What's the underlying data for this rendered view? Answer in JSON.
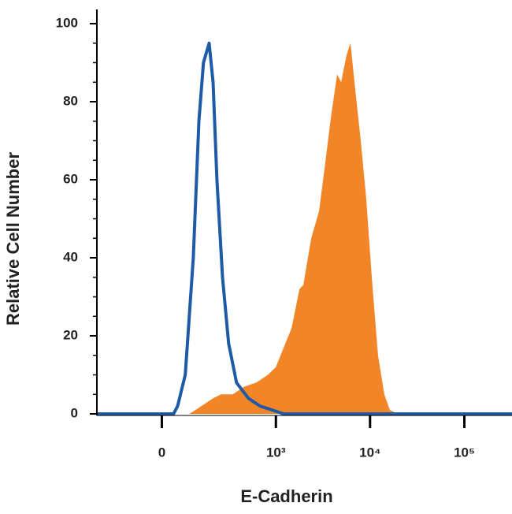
{
  "chart_data": {
    "type": "histogram-overlay",
    "xlabel": "E-Cadherin",
    "ylabel": "Relative Cell Number",
    "xscale": "biexponential",
    "xlim": [
      -290,
      320000
    ],
    "xticks": [
      0,
      {
        "value": 1000,
        "label": "10³"
      },
      {
        "value": 10000,
        "label": "10⁴"
      },
      {
        "value": 100000,
        "label": "10⁵"
      }
    ],
    "ylim": [
      0,
      100
    ],
    "yticks": [
      0,
      20,
      40,
      60,
      80,
      100
    ],
    "series": [
      {
        "style": "area",
        "color": "#f28527",
        "x": [
          -290,
          90,
          139,
          199,
          248,
          338,
          457,
          614,
          822,
          999,
          1213,
          1470,
          1782,
          1961,
          2378,
          2882,
          3296,
          3844,
          4480,
          4935,
          5640,
          6210,
          6835,
          7970,
          9115,
          10430,
          12155,
          14170,
          16220,
          19630,
          320000
        ],
        "values": [
          0,
          0,
          2,
          4,
          5,
          5,
          7,
          8,
          10,
          12,
          17,
          22,
          32,
          33,
          45,
          52,
          63,
          76,
          87,
          85,
          92,
          95,
          85,
          70,
          55,
          35,
          15,
          5,
          1,
          0,
          0
        ]
      },
      {
        "style": "line",
        "color": "#1f5aa6",
        "x": [
          -290,
          36,
          49,
          75,
          105,
          128,
          149,
          177,
          199,
          222,
          259,
          305,
          374,
          505,
          677,
          907,
          1213,
          320000
        ],
        "values": [
          0,
          0,
          2,
          10,
          40,
          75,
          90,
          95,
          85,
          60,
          35,
          18,
          8,
          4,
          2,
          1,
          0,
          0
        ]
      }
    ]
  }
}
